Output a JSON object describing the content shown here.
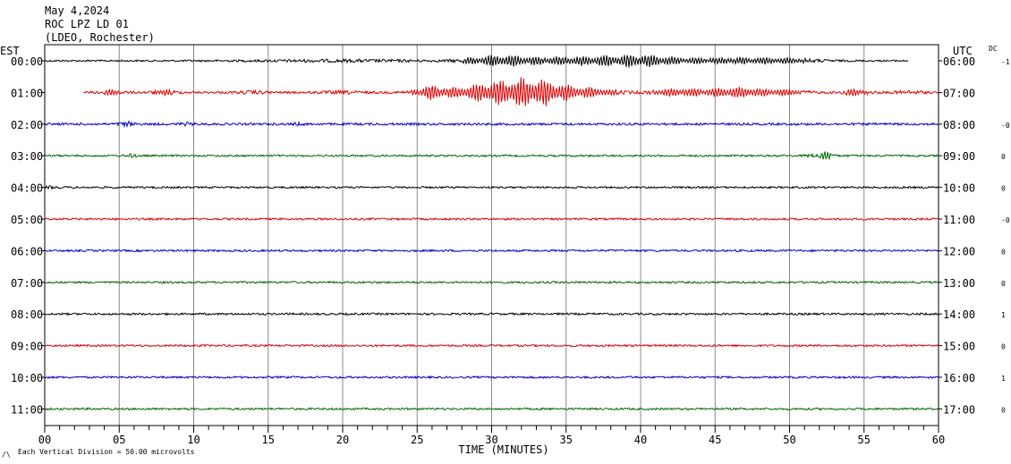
{
  "chart_data": {
    "type": "line",
    "title_lines": [
      "May 4,2024",
      "ROC LPZ LD 01",
      "(LDEO, Rochester)"
    ],
    "left_axis_label": "EST",
    "right_axis_label": "UTC",
    "dc_label": "DC",
    "xlabel": "TIME (MINUTES)",
    "xlim": [
      0,
      60
    ],
    "x_ticks": [
      "00",
      "05",
      "10",
      "15",
      "20",
      "25",
      "30",
      "35",
      "40",
      "45",
      "50",
      "55",
      "60"
    ],
    "footnote": "Each Vertical Division =   50.00 microvolts",
    "corner_mark": "/\\",
    "colors": [
      "#000000",
      "#dd0000",
      "#0000cc",
      "#006600"
    ],
    "rows": [
      {
        "est": "00:00",
        "utc": "06:00",
        "dc": "-1",
        "start_min": 0,
        "end_min": 58.0
      },
      {
        "est": "01:00",
        "utc": "07:00",
        "dc": "",
        "start_min": 2.6,
        "end_min": 60
      },
      {
        "est": "02:00",
        "utc": "08:00",
        "dc": "-0",
        "start_min": 0,
        "end_min": 60
      },
      {
        "est": "03:00",
        "utc": "09:00",
        "dc": "0",
        "start_min": 0,
        "end_min": 60
      },
      {
        "est": "04:00",
        "utc": "10:00",
        "dc": "0",
        "start_min": 0,
        "end_min": 60
      },
      {
        "est": "05:00",
        "utc": "11:00",
        "dc": "-0",
        "start_min": 0,
        "end_min": 60
      },
      {
        "est": "06:00",
        "utc": "12:00",
        "dc": "0",
        "start_min": 0,
        "end_min": 60
      },
      {
        "est": "07:00",
        "utc": "13:00",
        "dc": "0",
        "start_min": 0,
        "end_min": 60
      },
      {
        "est": "08:00",
        "utc": "14:00",
        "dc": "1",
        "start_min": 0,
        "end_min": 60
      },
      {
        "est": "09:00",
        "utc": "15:00",
        "dc": "0",
        "start_min": 0,
        "end_min": 60
      },
      {
        "est": "10:00",
        "utc": "16:00",
        "dc": "1",
        "start_min": 0,
        "end_min": 60
      },
      {
        "est": "11:00",
        "utc": "17:00",
        "dc": "0",
        "start_min": 0,
        "end_min": 60
      }
    ]
  }
}
